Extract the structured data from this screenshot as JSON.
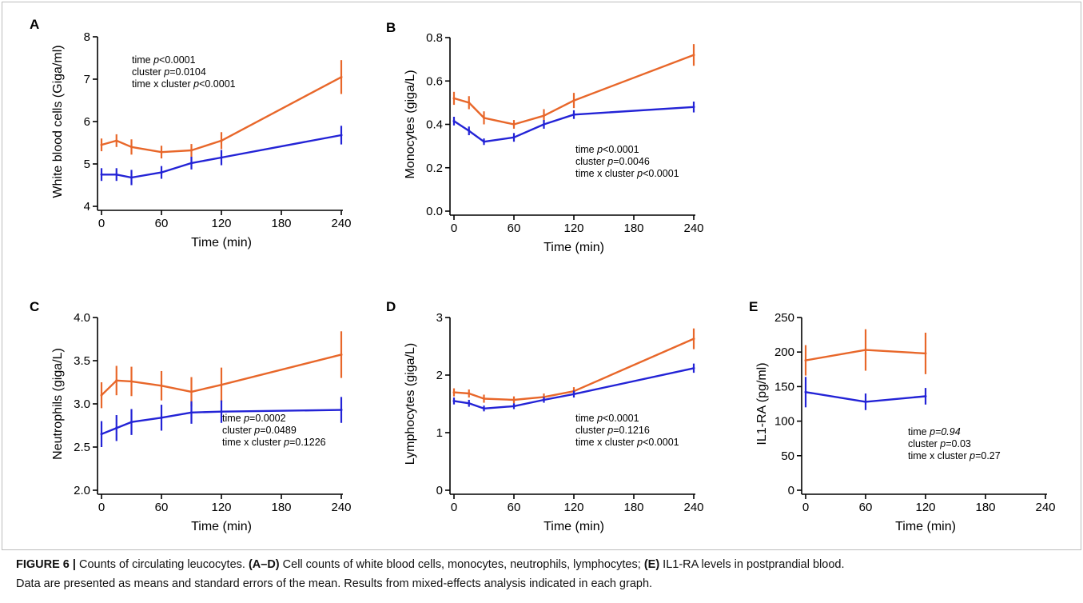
{
  "colors": {
    "series1": "#e8672a",
    "series2": "#2323d6",
    "axis": "#000000"
  },
  "caption": {
    "label": "FIGURE 6 |",
    "text1": " Counts of circulating leucocytes. ",
    "bold1": "(A–D)",
    "text2": " Cell counts of white blood cells, monocytes, neutrophils, lymphocytes; ",
    "bold2": "(E)",
    "text3": " IL1-RA levels in postprandial blood.",
    "line2": "Data are presented as means and standard errors of the mean. Results from mixed-effects analysis indicated in each graph."
  },
  "chart_data": [
    {
      "panel": "A",
      "type": "line",
      "xlabel": "Time (min)",
      "ylabel": "White blood cells (Giga/ml)",
      "xlim": [
        0,
        240
      ],
      "ylim": [
        4,
        8
      ],
      "xticks": [
        0,
        60,
        120,
        180,
        240
      ],
      "yticks": [
        4,
        5,
        6,
        7,
        8
      ],
      "ytick_labels": [
        "4",
        "5",
        "6",
        "7",
        "8"
      ],
      "stats": [
        [
          {
            "t": "time "
          },
          {
            "t": "p",
            "i": true
          },
          {
            "t": "<0.0001"
          }
        ],
        [
          {
            "t": "cluster "
          },
          {
            "t": "p",
            "i": true
          },
          {
            "t": "=0.0104"
          }
        ],
        [
          {
            "t": "time x cluster "
          },
          {
            "t": "p",
            "i": true
          },
          {
            "t": "<0.0001"
          }
        ]
      ],
      "stats_pos": "top-left",
      "series": [
        {
          "x": [
            0,
            15,
            30,
            60,
            90,
            120,
            240
          ],
          "y": [
            5.45,
            5.55,
            5.4,
            5.28,
            5.32,
            5.55,
            7.05
          ],
          "err": [
            0.15,
            0.15,
            0.18,
            0.15,
            0.15,
            0.2,
            0.4
          ]
        },
        {
          "x": [
            0,
            15,
            30,
            60,
            90,
            120,
            240
          ],
          "y": [
            4.75,
            4.75,
            4.68,
            4.8,
            5.02,
            5.15,
            5.68
          ],
          "err": [
            0.15,
            0.15,
            0.18,
            0.15,
            0.15,
            0.18,
            0.22
          ]
        }
      ]
    },
    {
      "panel": "B",
      "type": "line",
      "xlabel": "Time (min)",
      "ylabel": "Monocytes (giga/L)",
      "xlim": [
        0,
        240
      ],
      "ylim": [
        0,
        0.8
      ],
      "xticks": [
        0,
        60,
        120,
        180,
        240
      ],
      "yticks": [
        0,
        0.2,
        0.4,
        0.6,
        0.8
      ],
      "ytick_labels": [
        "0.0",
        "0.2",
        "0.4",
        "0.6",
        "0.8"
      ],
      "stats": [
        [
          {
            "t": "time "
          },
          {
            "t": "p",
            "i": true
          },
          {
            "t": "<0.0001"
          }
        ],
        [
          {
            "t": "cluster "
          },
          {
            "t": "p",
            "i": true
          },
          {
            "t": "=0.0046"
          }
        ],
        [
          {
            "t": "time x cluster "
          },
          {
            "t": "p",
            "i": true
          },
          {
            "t": "<0.0001"
          }
        ]
      ],
      "stats_pos": "middle-right",
      "series": [
        {
          "x": [
            0,
            15,
            30,
            60,
            90,
            120,
            240
          ],
          "y": [
            0.52,
            0.5,
            0.43,
            0.4,
            0.44,
            0.51,
            0.72
          ],
          "err": [
            0.03,
            0.03,
            0.03,
            0.02,
            0.03,
            0.035,
            0.05
          ]
        },
        {
          "x": [
            0,
            15,
            30,
            60,
            90,
            120,
            240
          ],
          "y": [
            0.415,
            0.37,
            0.32,
            0.34,
            0.4,
            0.445,
            0.48
          ],
          "err": [
            0.02,
            0.02,
            0.015,
            0.02,
            0.02,
            0.02,
            0.025
          ]
        }
      ]
    },
    {
      "panel": "C",
      "type": "line",
      "xlabel": "Time (min)",
      "ylabel": "Neutrophils (giga/L)",
      "xlim": [
        0,
        240
      ],
      "ylim": [
        2.0,
        4.0
      ],
      "xticks": [
        0,
        60,
        120,
        180,
        240
      ],
      "yticks": [
        2.0,
        2.5,
        3.0,
        3.5,
        4.0
      ],
      "ytick_labels": [
        "2.0",
        "2.5",
        "3.0",
        "3.5",
        "4.0"
      ],
      "stats": [
        [
          {
            "t": "time "
          },
          {
            "t": "p",
            "i": true
          },
          {
            "t": "=0.0002"
          }
        ],
        [
          {
            "t": "cluster "
          },
          {
            "t": "p",
            "i": true
          },
          {
            "t": "=0.0489"
          }
        ],
        [
          {
            "t": "time x cluster "
          },
          {
            "t": "p",
            "i": true
          },
          {
            "t": "=0.1226"
          }
        ]
      ],
      "stats_pos": "bottom-right",
      "series": [
        {
          "x": [
            0,
            15,
            30,
            60,
            90,
            120,
            240
          ],
          "y": [
            3.1,
            3.27,
            3.26,
            3.21,
            3.14,
            3.22,
            3.57
          ],
          "err": [
            0.15,
            0.17,
            0.17,
            0.17,
            0.17,
            0.2,
            0.27
          ]
        },
        {
          "x": [
            0,
            15,
            30,
            60,
            90,
            120,
            240
          ],
          "y": [
            2.65,
            2.72,
            2.79,
            2.84,
            2.9,
            2.91,
            2.93
          ],
          "err": [
            0.15,
            0.15,
            0.15,
            0.15,
            0.13,
            0.13,
            0.15
          ]
        }
      ]
    },
    {
      "panel": "D",
      "type": "line",
      "xlabel": "Time (min)",
      "ylabel": "Lymphocytes (giga/L)",
      "xlim": [
        0,
        240
      ],
      "ylim": [
        0,
        3
      ],
      "xticks": [
        0,
        60,
        120,
        180,
        240
      ],
      "yticks": [
        0,
        1,
        2,
        3
      ],
      "ytick_labels": [
        "0",
        "1",
        "2",
        "3"
      ],
      "stats": [
        [
          {
            "t": "time "
          },
          {
            "t": "p",
            "i": true
          },
          {
            "t": "<0.0001"
          }
        ],
        [
          {
            "t": "cluster "
          },
          {
            "t": "p",
            "i": true
          },
          {
            "t": "=0.1216"
          }
        ],
        [
          {
            "t": "time x cluster "
          },
          {
            "t": "p",
            "i": true
          },
          {
            "t": "<0.0001"
          }
        ]
      ],
      "stats_pos": "bottom-right",
      "series": [
        {
          "x": [
            0,
            15,
            30,
            60,
            90,
            120,
            240
          ],
          "y": [
            1.7,
            1.68,
            1.59,
            1.57,
            1.62,
            1.72,
            2.63
          ],
          "err": [
            0.07,
            0.07,
            0.07,
            0.06,
            0.06,
            0.07,
            0.18
          ]
        },
        {
          "x": [
            0,
            15,
            30,
            60,
            90,
            120,
            240
          ],
          "y": [
            1.55,
            1.51,
            1.42,
            1.46,
            1.57,
            1.67,
            2.12
          ],
          "err": [
            0.06,
            0.06,
            0.05,
            0.05,
            0.05,
            0.06,
            0.08
          ]
        }
      ]
    },
    {
      "panel": "E",
      "type": "line",
      "xlabel": "Time (min)",
      "ylabel": "IL1-RA (pg/ml)",
      "xlim": [
        0,
        240
      ],
      "ylim": [
        0,
        250
      ],
      "xticks": [
        0,
        60,
        120,
        180,
        240
      ],
      "yticks": [
        0,
        50,
        100,
        150,
        200,
        250
      ],
      "ytick_labels": [
        "0",
        "50",
        "100",
        "150",
        "200",
        "250"
      ],
      "stats": [
        [
          {
            "t": "time "
          },
          {
            "t": "p=0.94",
            "i": true
          }
        ],
        [
          {
            "t": "cluster "
          },
          {
            "t": "p",
            "i": true
          },
          {
            "t": "=0.03"
          }
        ],
        [
          {
            "t": "time x cluster "
          },
          {
            "t": "p",
            "i": true
          },
          {
            "t": "=0.27"
          }
        ]
      ],
      "stats_pos": "bottom-right",
      "series": [
        {
          "x": [
            0,
            60,
            120
          ],
          "y": [
            188,
            203,
            198
          ],
          "err": [
            22,
            30,
            30
          ]
        },
        {
          "x": [
            0,
            60,
            120
          ],
          "y": [
            142,
            128,
            136
          ],
          "err": [
            22,
            12,
            12
          ]
        }
      ]
    }
  ]
}
